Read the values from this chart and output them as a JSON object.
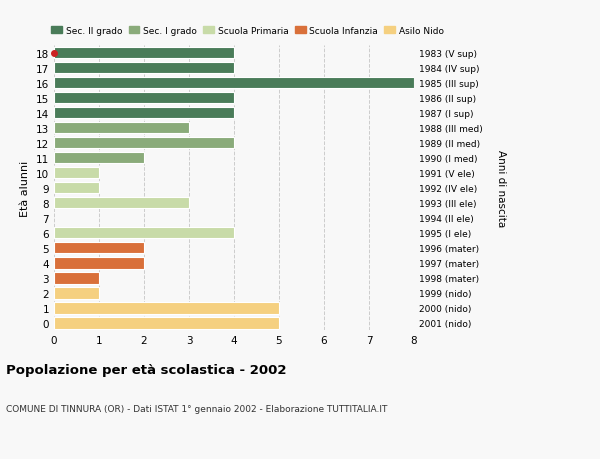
{
  "ages": [
    18,
    17,
    16,
    15,
    14,
    13,
    12,
    11,
    10,
    9,
    8,
    7,
    6,
    5,
    4,
    3,
    2,
    1,
    0
  ],
  "right_labels": [
    "1983 (V sup)",
    "1984 (IV sup)",
    "1985 (III sup)",
    "1986 (II sup)",
    "1987 (I sup)",
    "1988 (III med)",
    "1989 (II med)",
    "1990 (I med)",
    "1991 (V ele)",
    "1992 (IV ele)",
    "1993 (III ele)",
    "1994 (II ele)",
    "1995 (I ele)",
    "1996 (mater)",
    "1997 (mater)",
    "1998 (mater)",
    "1999 (nido)",
    "2000 (nido)",
    "2001 (nido)"
  ],
  "values": [
    4,
    4,
    8,
    4,
    4,
    3,
    4,
    2,
    1,
    1,
    3,
    0,
    4,
    2,
    2,
    1,
    1,
    5,
    5
  ],
  "categories": [
    "Sec. II grado",
    "Sec. II grado",
    "Sec. II grado",
    "Sec. II grado",
    "Sec. II grado",
    "Sec. I grado",
    "Sec. I grado",
    "Sec. I grado",
    "Scuola Primaria",
    "Scuola Primaria",
    "Scuola Primaria",
    "Scuola Primaria",
    "Scuola Primaria",
    "Scuola Infanzia",
    "Scuola Infanzia",
    "Scuola Infanzia",
    "Asilo Nido",
    "Asilo Nido",
    "Asilo Nido"
  ],
  "colors": {
    "Sec. II grado": "#4a7c59",
    "Sec. I grado": "#8aab7a",
    "Scuola Primaria": "#c8dba8",
    "Scuola Infanzia": "#d9703a",
    "Asilo Nido": "#f5d080"
  },
  "legend_order": [
    "Sec. II grado",
    "Sec. I grado",
    "Scuola Primaria",
    "Scuola Infanzia",
    "Asilo Nido"
  ],
  "title": "Popolazione per età scolastica - 2002",
  "subtitle": "COMUNE DI TINNURA (OR) - Dati ISTAT 1° gennaio 2002 - Elaborazione TUTTITALIA.IT",
  "ylabel": "Età alunni",
  "right_ylabel": "Anni di nascita",
  "xlim": [
    0,
    8
  ],
  "xticks": [
    0,
    1,
    2,
    3,
    4,
    5,
    6,
    7,
    8
  ],
  "bg_color": "#f8f8f8",
  "grid_color": "#cccccc",
  "dot_color": "#cc2222"
}
